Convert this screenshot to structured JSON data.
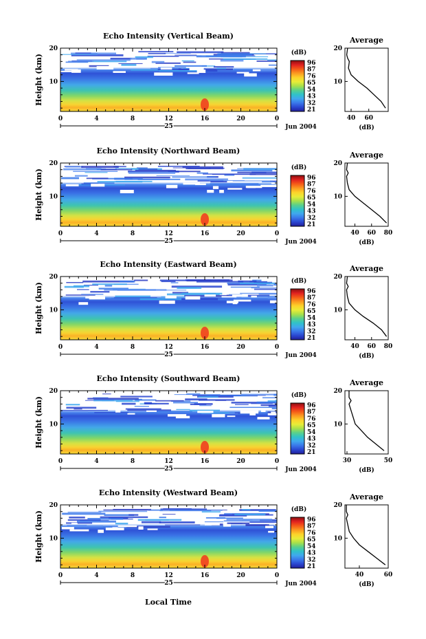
{
  "figure": {
    "xlabel": "Local Time",
    "date_label": "Jun 2004",
    "x_ticks": [
      "0",
      "4",
      "8",
      "12",
      "16",
      "20",
      "0"
    ],
    "day_label": "25",
    "ylabel": "Height (km)",
    "y_ticks": [
      "10",
      "20"
    ],
    "colorbar_title": "(dB)",
    "avg_title": "Average",
    "avg_xlabel": "(dB)"
  },
  "colors": {
    "colorbar": [
      "#8a1010",
      "#e02020",
      "#f55a18",
      "#fb9a20",
      "#fdd22a",
      "#e8ec38",
      "#a8e04a",
      "#5ad08a",
      "#30c2c8",
      "#40a8ee",
      "#3a78ea",
      "#2a46d0",
      "#221e9a"
    ]
  },
  "chart_data": [
    {
      "type": "heatmap",
      "title": "Echo Intensity (Vertical Beam)",
      "colorbar_ticks": [
        "96",
        "87",
        "76",
        "65",
        "54",
        "43",
        "32",
        "21"
      ],
      "avg_ticks": [
        "40",
        "60"
      ],
      "avg_profile": {
        "x": [
          79,
          74,
          66,
          58,
          48,
          40,
          37,
          38,
          36,
          35,
          36
        ],
        "y": [
          2,
          4,
          6,
          8,
          10,
          12,
          14,
          16,
          17,
          18,
          20
        ],
        "xlim": [
          33,
          82
        ]
      }
    },
    {
      "type": "heatmap",
      "title": "Echo Intensity (Northward Beam)",
      "colorbar_ticks": [
        "96",
        "87",
        "76",
        "65",
        "54",
        "43",
        "32",
        "21"
      ],
      "avg_ticks": [
        "40",
        "60",
        "80"
      ],
      "avg_profile": {
        "x": [
          78,
          70,
          60,
          50,
          40,
          33,
          31,
          30,
          32,
          30,
          31
        ],
        "y": [
          2,
          4,
          6,
          8,
          10,
          12,
          14,
          16,
          17,
          18,
          20
        ],
        "xlim": [
          28,
          80
        ]
      }
    },
    {
      "type": "heatmap",
      "title": "Echo Intensity (Eastward Beam)",
      "colorbar_ticks": [
        "96",
        "87",
        "76",
        "65",
        "54",
        "43",
        "32",
        "21"
      ],
      "avg_ticks": [
        "40",
        "60",
        "80"
      ],
      "avg_profile": {
        "x": [
          78,
          72,
          62,
          50,
          40,
          33,
          31,
          30,
          32,
          30,
          31
        ],
        "y": [
          2,
          4,
          6,
          8,
          10,
          12,
          14,
          16,
          17,
          18,
          20
        ],
        "xlim": [
          28,
          80
        ]
      }
    },
    {
      "type": "heatmap",
      "title": "Echo Intensity (Southward Beam)",
      "colorbar_ticks": [
        "96",
        "87",
        "76",
        "65",
        "54",
        "43",
        "32",
        "21"
      ],
      "avg_ticks": [
        "30",
        "50"
      ],
      "avg_profile": {
        "x": [
          48,
          44,
          40,
          37,
          34,
          33,
          32,
          31,
          32,
          31,
          31
        ],
        "y": [
          2,
          4,
          6,
          8,
          10,
          12,
          14,
          16,
          17,
          18,
          20
        ],
        "xlim": [
          29,
          50
        ]
      }
    },
    {
      "type": "heatmap",
      "title": "Echo Intensity (Westward Beam)",
      "colorbar_ticks": [
        "96",
        "87",
        "76",
        "65",
        "54",
        "43",
        "32",
        "21"
      ],
      "avg_ticks": [
        "40",
        "60"
      ],
      "avg_profile": {
        "x": [
          58,
          52,
          46,
          40,
          36,
          33,
          32,
          31,
          32,
          31,
          31
        ],
        "y": [
          2,
          4,
          6,
          8,
          10,
          12,
          14,
          16,
          17,
          18,
          20
        ],
        "xlim": [
          30,
          60
        ]
      }
    }
  ]
}
